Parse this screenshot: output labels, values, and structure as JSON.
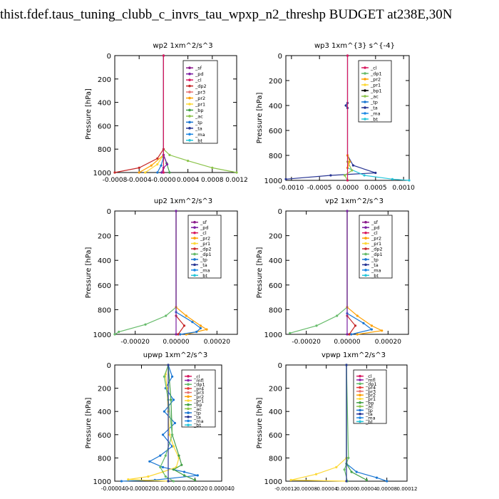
{
  "figure_title": "thist.fdef.taus_tuning_clubb_c_invrs_tau_wpxp_n2_threshp  BUDGET at238E,30N",
  "colors": {
    "_sf": "#8b1a8b",
    "_pd": "#7b1fa2",
    "_cl": "#d81b60",
    "_dp2": "#c62828",
    "_pr3": "#e57373",
    "_pr2": "#ffa000",
    "_pr1": "#fdd835",
    "_bp": "#43a047",
    "_ac": "#8bc34a",
    "_tp": "#1976d2",
    "_ta": "#283593",
    "_ma": "#1e88e5",
    "_bt": "#26c6da",
    "_dp1": "#66bb6a",
    "_mfl": "#8e24aa",
    "_pr4": "#e53935"
  },
  "chart_data": [
    {
      "type": "line",
      "title": "wp2  1xm^2/s^3",
      "ylabel": "Pressure [hPa]",
      "ylim": [
        0,
        1000
      ],
      "xlim": [
        -0.0008,
        0.0012
      ],
      "xticks": [
        -0.0008,
        -0.0004,
        0.0,
        0.0004,
        0.0008,
        0.0012
      ],
      "xtick_labels": [
        "-0.0008",
        "-0.0004",
        "-0.0000",
        "0.0004",
        "0.0008",
        "0.0012"
      ],
      "yticks": [
        0,
        200,
        400,
        600,
        800,
        1000
      ],
      "legend": [
        "_sf",
        "_pd",
        "_cl",
        "_dp2",
        "_pr3",
        "_pr2",
        "_pr1",
        "_bp",
        "_ac",
        "_tp",
        "_ta",
        "_ma",
        "_bt"
      ],
      "series": [
        {
          "name": "_ac",
          "points": [
            [
              0,
              0
            ],
            [
              0,
              800
            ],
            [
              0.0001,
              850
            ],
            [
              0.0004,
              900
            ],
            [
              0.0008,
              960
            ],
            [
              0.0012,
              1000
            ]
          ]
        },
        {
          "name": "_dp2",
          "points": [
            [
              0,
              0
            ],
            [
              0,
              800
            ],
            [
              -0.0001,
              880
            ],
            [
              -0.0004,
              960
            ],
            [
              -0.0008,
              1000
            ]
          ]
        },
        {
          "name": "_pr2",
          "points": [
            [
              0,
              0
            ],
            [
              0,
              850
            ],
            [
              -0.0002,
              940
            ],
            [
              -0.0004,
              1000
            ]
          ]
        },
        {
          "name": "_pr1",
          "points": [
            [
              0,
              0
            ],
            [
              0,
              850
            ],
            [
              -0.0001,
              930
            ],
            [
              -0.0003,
              1000
            ]
          ]
        },
        {
          "name": "_bp",
          "points": [
            [
              0,
              0
            ],
            [
              0,
              850
            ],
            [
              5e-05,
              920
            ],
            [
              0.0001,
              1000
            ]
          ]
        },
        {
          "name": "_tp",
          "points": [
            [
              0,
              0
            ],
            [
              0,
              870
            ],
            [
              -4e-05,
              940
            ],
            [
              -0.0001,
              1000
            ]
          ]
        },
        {
          "name": "_pd",
          "points": [
            [
              0,
              0
            ],
            [
              0,
              850
            ],
            [
              6e-05,
              930
            ],
            [
              0,
              960
            ],
            [
              -3e-05,
              1000
            ]
          ]
        },
        {
          "name": "_cl",
          "points": [
            [
              0,
              0
            ],
            [
              0,
              1000
            ]
          ]
        }
      ]
    },
    {
      "type": "line",
      "title": "wp3  1xm^{3} s^{-4}",
      "ylabel": "Pressure [hPa]",
      "ylim": [
        0,
        1000
      ],
      "xlim": [
        -0.0011,
        0.0011
      ],
      "xticks": [
        -0.001,
        -0.0005,
        0.0,
        0.0005,
        0.001
      ],
      "xtick_labels": [
        "-0.0010",
        "-0.0005",
        "0.0000",
        "0.0005",
        "0.0010"
      ],
      "yticks": [
        0,
        200,
        400,
        600,
        800,
        1000
      ],
      "legend": [
        "_cl",
        "_dp1",
        "_pr2",
        "_pr1",
        "_bp1",
        "_ac",
        "_tp",
        "_ta",
        "_ma",
        "_bt"
      ],
      "series": [
        {
          "name": "_ta",
          "points": [
            [
              0,
              0
            ],
            [
              0,
              380
            ],
            [
              -3e-05,
              400
            ],
            [
              0,
              420
            ],
            [
              0,
              800
            ],
            [
              0.0001,
              880
            ],
            [
              0.0005,
              940
            ],
            [
              -0.0003,
              960
            ],
            [
              -0.0011,
              990
            ]
          ]
        },
        {
          "name": "_bt",
          "points": [
            [
              0,
              900
            ],
            [
              0.0003,
              960
            ],
            [
              0.0008,
              990
            ],
            [
              0.0011,
              1000
            ]
          ]
        },
        {
          "name": "_ac",
          "points": [
            [
              0,
              850
            ],
            [
              8e-05,
              920
            ],
            [
              -5e-05,
              960
            ],
            [
              0,
              1000
            ]
          ]
        },
        {
          "name": "_pr2",
          "points": [
            [
              0,
              800
            ],
            [
              4e-05,
              850
            ],
            [
              0,
              900
            ]
          ]
        },
        {
          "name": "_cl",
          "points": [
            [
              0,
              0
            ],
            [
              0,
              1000
            ]
          ]
        }
      ]
    },
    {
      "type": "line",
      "title": "up2   1xm^2/s^3",
      "ylabel": "Pressure [hPa]",
      "ylim": [
        0,
        1000
      ],
      "xlim": [
        -0.0003,
        0.0003
      ],
      "xticks": [
        -0.0002,
        0.0,
        0.0002
      ],
      "xtick_labels": [
        "-0.00020",
        "0.00000",
        "0.00020"
      ],
      "yticks": [
        0,
        200,
        400,
        600,
        800,
        1000
      ],
      "legend": [
        "_sf",
        "_pd",
        "_cl",
        "_pr2",
        "_pr1",
        "_dp2",
        "_dp1",
        "_tp",
        "_ta",
        "_ma",
        "_bt"
      ],
      "series": [
        {
          "name": "_dp1",
          "points": [
            [
              0,
              0
            ],
            [
              0,
              780
            ],
            [
              -5e-05,
              850
            ],
            [
              -0.00015,
              920
            ],
            [
              -0.00028,
              980
            ],
            [
              -0.0003,
              1000
            ]
          ]
        },
        {
          "name": "_pr2",
          "points": [
            [
              0,
              0
            ],
            [
              0,
              780
            ],
            [
              5e-05,
              850
            ],
            [
              0.00012,
              930
            ],
            [
              0.00015,
              960
            ],
            [
              5e-05,
              1000
            ]
          ]
        },
        {
          "name": "_tp",
          "points": [
            [
              0,
              0
            ],
            [
              0,
              820
            ],
            [
              8e-05,
              900
            ],
            [
              0.00012,
              950
            ],
            [
              0.0001,
              980
            ],
            [
              2e-05,
              1000
            ]
          ]
        },
        {
          "name": "_dp2",
          "points": [
            [
              0,
              850
            ],
            [
              4e-05,
              930
            ],
            [
              1e-05,
              1000
            ]
          ]
        },
        {
          "name": "_pd",
          "points": [
            [
              0,
              0
            ],
            [
              0,
              1000
            ]
          ]
        }
      ]
    },
    {
      "type": "line",
      "title": "vp2   1xm^2/s^3",
      "ylabel": "Pressure [hPa]",
      "ylim": [
        0,
        1000
      ],
      "xlim": [
        -0.0003,
        0.0003
      ],
      "xticks": [
        -0.0002,
        0.0,
        0.0002
      ],
      "xtick_labels": [
        "-0.00020",
        "0.00000",
        "0.00020"
      ],
      "yticks": [
        0,
        200,
        400,
        600,
        800,
        1000
      ],
      "legend": [
        "_sf",
        "_pd",
        "_cl",
        "_pr2",
        "_pr1",
        "_dp2",
        "_dp1",
        "_tp",
        "_ta",
        "_ma",
        "_bt"
      ],
      "series": [
        {
          "name": "_dp1",
          "points": [
            [
              0,
              0
            ],
            [
              0,
              780
            ],
            [
              -5e-05,
              850
            ],
            [
              -0.00015,
              930
            ],
            [
              -0.00028,
              990
            ]
          ]
        },
        {
          "name": "_pr2",
          "points": [
            [
              0,
              0
            ],
            [
              0,
              780
            ],
            [
              5e-05,
              850
            ],
            [
              0.00012,
              930
            ],
            [
              0.00017,
              970
            ],
            [
              5e-05,
              1000
            ]
          ]
        },
        {
          "name": "_tp",
          "points": [
            [
              0,
              0
            ],
            [
              0,
              830
            ],
            [
              8e-05,
              910
            ],
            [
              0.00012,
              960
            ],
            [
              2e-05,
              1000
            ]
          ]
        },
        {
          "name": "_dp2",
          "points": [
            [
              0,
              850
            ],
            [
              4e-05,
              930
            ],
            [
              1e-05,
              1000
            ]
          ]
        },
        {
          "name": "_pd",
          "points": [
            [
              0,
              0
            ],
            [
              0,
              1000
            ]
          ]
        }
      ]
    },
    {
      "type": "line",
      "title": "upwp   1xm^2/s^3",
      "ylabel": "Pressure [hPa]",
      "ylim": [
        0,
        1000
      ],
      "xlim": [
        -4e-05,
        4e-05
      ],
      "xticks": [
        -4e-05,
        -2e-05,
        0.0,
        2e-05,
        4e-05
      ],
      "xtick_labels": [
        "-0.000040",
        "-0.000020",
        "0.000000",
        "0.000020",
        "0.000040"
      ],
      "yticks": [
        0,
        200,
        400,
        600,
        800,
        1000
      ],
      "legend": [
        "_cl",
        "_mfl",
        "_dp1",
        "_pr4",
        "_pr3",
        "_pr2",
        "_pr1",
        "_bp",
        "_ac",
        "_tp",
        "_ta",
        "_ma",
        "_bt"
      ],
      "series": [
        {
          "name": "_tp",
          "points": [
            [
              0,
              0
            ],
            [
              3e-06,
              100
            ],
            [
              -2e-06,
              200
            ],
            [
              4e-06,
              300
            ],
            [
              -3e-06,
              400
            ],
            [
              5e-06,
              500
            ],
            [
              -4e-06,
              600
            ],
            [
              3e-06,
              700
            ],
            [
              -6e-06,
              780
            ],
            [
              -1.4e-05,
              830
            ],
            [
              -4e-06,
              880
            ],
            [
              1.2e-05,
              920
            ],
            [
              2.2e-05,
              950
            ],
            [
              -1e-05,
              990
            ],
            [
              -3.5e-05,
              1000
            ]
          ]
        },
        {
          "name": "_pr1",
          "points": [
            [
              0,
              0
            ],
            [
              -2e-06,
              80
            ],
            [
              -1e-06,
              200
            ],
            [
              0,
              400
            ],
            [
              1e-06,
              600
            ],
            [
              4e-06,
              700
            ],
            [
              8e-06,
              800
            ],
            [
              6e-06,
              880
            ],
            [
              -4e-06,
              920
            ],
            [
              -1.5e-05,
              960
            ],
            [
              -3e-05,
              985
            ],
            [
              0,
              1000
            ]
          ]
        },
        {
          "name": "_bp",
          "points": [
            [
              0,
              0
            ],
            [
              2e-06,
              300
            ],
            [
              3e-06,
              600
            ],
            [
              8e-06,
              780
            ],
            [
              1e-05,
              860
            ],
            [
              4e-06,
              900
            ],
            [
              1.2e-05,
              950
            ],
            [
              2e-05,
              990
            ]
          ]
        },
        {
          "name": "_dp1",
          "points": [
            [
              0,
              0
            ],
            [
              -3e-06,
              100
            ],
            [
              0,
              300
            ],
            [
              3e-06,
              600
            ],
            [
              -2e-06,
              780
            ],
            [
              -6e-06,
              880
            ],
            [
              -2e-06,
              960
            ],
            [
              4e-06,
              1000
            ]
          ]
        },
        {
          "name": "_ta",
          "points": [
            [
              0,
              0
            ],
            [
              0,
              1000
            ]
          ]
        }
      ]
    },
    {
      "type": "line",
      "title": "vpwp   1xm^2/s^3",
      "ylabel": "Pressure [hPa]",
      "ylim": [
        0,
        1000
      ],
      "xlim": [
        -0.00012,
        0.00012
      ],
      "xticks": [
        -0.00012,
        -8e-05,
        -4e-05,
        0.0,
        4e-05,
        8e-05,
        0.00012
      ],
      "xtick_labels": [
        "-0.00012",
        "-0.00008",
        "-0.00004",
        "0.00000",
        "0.00004",
        "0.00008",
        "0.00012"
      ],
      "yticks": [
        0,
        200,
        400,
        600,
        800,
        1000
      ],
      "legend": [
        "_cl",
        "_mfl",
        "_dp1",
        "_pr4",
        "_pr3",
        "_pr2",
        "_pr1",
        "_bp",
        "_ac",
        "_tp",
        "_ta",
        "_ma",
        "_bt"
      ],
      "series": [
        {
          "name": "_pr1",
          "points": [
            [
              0,
              0
            ],
            [
              0,
              800
            ],
            [
              -2e-05,
              880
            ],
            [
              -6e-05,
              940
            ],
            [
              -0.00011,
              990
            ],
            [
              0,
              1000
            ]
          ]
        },
        {
          "name": "_tp",
          "points": [
            [
              0,
              0
            ],
            [
              0,
              850
            ],
            [
              2e-05,
              920
            ],
            [
              6e-05,
              970
            ],
            [
              8e-05,
              1000
            ]
          ]
        },
        {
          "name": "_bp",
          "points": [
            [
              0,
              0
            ],
            [
              0,
              850
            ],
            [
              1e-05,
              920
            ],
            [
              4e-05,
              990
            ]
          ]
        },
        {
          "name": "_dp1",
          "points": [
            [
              0,
              0
            ],
            [
              4e-06,
              800
            ],
            [
              -4e-06,
              900
            ],
            [
              2e-06,
              1000
            ]
          ]
        },
        {
          "name": "_ta",
          "points": [
            [
              0,
              0
            ],
            [
              0,
              1000
            ]
          ]
        }
      ]
    }
  ]
}
